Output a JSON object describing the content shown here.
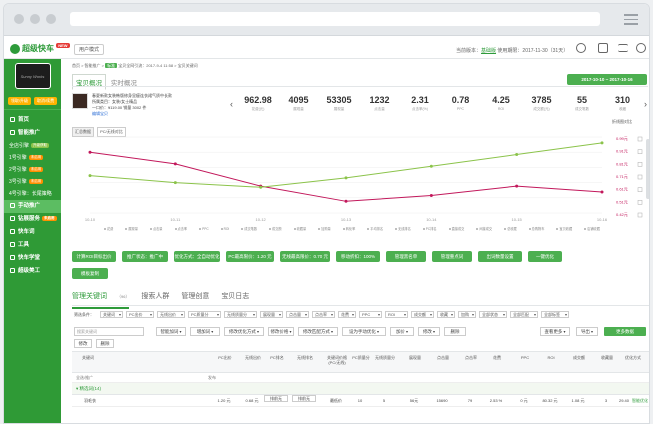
{
  "app": {
    "name": "超级快车",
    "badge": "NEW",
    "mode_btn": "用户模式"
  },
  "topbar": {
    "version_label": "当前版本：",
    "version": "基础版",
    "expiry": "使用期限：2017-11-30（31天）"
  },
  "sidebar": {
    "avatar_caption": "Sunny Works",
    "btn1": "领取/升级",
    "btn2": "取消/续费",
    "items": [
      {
        "label": "首页",
        "active": false,
        "main": true
      },
      {
        "label": "智能推广",
        "active": false,
        "main": true
      },
      {
        "label": "全店引擎",
        "tag": "升级获取",
        "sub": true
      },
      {
        "label": "1号引擎",
        "tag": "未启用",
        "sub": true
      },
      {
        "label": "2号引擎",
        "tag": "未启用",
        "sub": true
      },
      {
        "label": "3号引擎",
        "tag": "未启用",
        "sub": true
      },
      {
        "label": "4号引擎：长尾策略",
        "sub": true
      },
      {
        "label": "手动推广",
        "active": true,
        "main": true
      },
      {
        "label": "钻展服务",
        "tag": "未启用",
        "main": true
      },
      {
        "label": "快车词",
        "main": true
      },
      {
        "label": "工具",
        "main": true
      },
      {
        "label": "快车学堂",
        "main": true
      },
      {
        "label": "超级美工",
        "main": true
      }
    ]
  },
  "crumb": {
    "pre": "首页 > 智能推广 > ",
    "tag": "标准",
    "post": " 宝贝全网引流：2017-9-4 11:58 > 宝贝关键词"
  },
  "tabsA": [
    "宝贝概况",
    "实时概况"
  ],
  "date_range": "2017-10-10 ~ 2017-10-16",
  "product": {
    "title": "春夏新款女装韩版修身显瘦连衣裙气质中长款",
    "meta1": "所属类目：女装/女士精品",
    "meta2": "一口价：¥119.00 销量 3002 件",
    "link": "编辑宝贝"
  },
  "metrics": [
    {
      "value": "962.98",
      "label": "花费(元)"
    },
    {
      "value": "4095",
      "label": "展现量"
    },
    {
      "value": "53305",
      "label": "展现量"
    },
    {
      "value": "1232",
      "label": "点击量"
    },
    {
      "value": "2.31",
      "label": "点击率(%)"
    },
    {
      "value": "0.78",
      "label": "PPC"
    },
    {
      "value": "4.25",
      "label": "ROI"
    },
    {
      "value": "3785",
      "label": "成交额(元)"
    },
    {
      "value": "55",
      "label": "成交笔数"
    },
    {
      "value": "310",
      "label": "收藏"
    }
  ],
  "mini_tabs": [
    "汇总数据",
    "PC/无线对比"
  ],
  "compare_label": "折线图对比",
  "chart_data": {
    "type": "line",
    "x": [
      "10-10",
      "10-11",
      "10-12",
      "10-13",
      "10-14",
      "10-15",
      "10-16"
    ],
    "series": [
      {
        "name": "PPC",
        "color": "#c2185b",
        "values": [
          0.92,
          0.82,
          0.63,
          0.5,
          0.55,
          0.63,
          0.58
        ]
      },
      {
        "name": "ROI",
        "color": "#8bc34a",
        "values": [
          0.72,
          0.66,
          0.62,
          0.7,
          0.8,
          0.9,
          1.0
        ]
      }
    ],
    "right_ticks": [
      "0.99元",
      "0.91元",
      "0.81元",
      "0.71元",
      "0.61元",
      "0.51元",
      "0.42元"
    ],
    "legend": [
      "花费",
      "展现量",
      "点击量",
      "点击率",
      "PPC",
      "ROI",
      "成交笔数",
      "成交额",
      "收藏量",
      "加购量",
      "转化率",
      "平均排名",
      "无线排名",
      "PC排名",
      "直接成交",
      "间接成交",
      "总收藏",
      "总购物车",
      "宝贝收藏",
      "店铺收藏"
    ]
  },
  "ops": [
    "计算ROI目标出价",
    "推广状态：推广中",
    "优化方式：全自动优化",
    "PC最高限价：1.20 元",
    "无线最高限价：0.70 元",
    "移动折扣：100%",
    "管理黑名单",
    "管理重点词",
    "出词数量设置",
    "一键优化"
  ],
  "op_extra": "模板复制",
  "tabsB": [
    {
      "label": "管理关键词",
      "count": "（96）"
    },
    {
      "label": "搜索人群"
    },
    {
      "label": "管理创意"
    },
    {
      "label": "宝贝日志"
    }
  ],
  "filter_label": "筛选条件：",
  "filters": [
    "关键词",
    "PC出价",
    "无线出价",
    "PC质量分",
    "无线质量分",
    "展现量",
    "点击量",
    "点击率",
    "花费",
    "PPC",
    "ROI",
    "成交额",
    "收藏",
    "加购",
    "全部状态",
    "全部匹配",
    "全部标签"
  ],
  "search_placeholder": "搜索关键词",
  "tools": [
    "智能加词",
    "增加词",
    "修改优化方式",
    "修改价格",
    "修改匹配方式",
    "设为手动优化",
    "加价",
    "修改",
    "删除"
  ],
  "tool_sort": "查看更多",
  "tool_export": "导出",
  "tool_more": "更多数据",
  "columns": [
    "关键词",
    "PC出价",
    "无线出价",
    "PC排名",
    "无线排名",
    "关键词价格(PC/无线)",
    "PC质量分",
    "无线质量分",
    "展现量",
    "点击量",
    "点击率",
    "花费",
    "PPC",
    "ROI",
    "成交额",
    "收藏量",
    "优化方式"
  ],
  "subrow": {
    "label": "全选/推广",
    "col": "发布"
  },
  "group_label": "精选词(14)",
  "row": {
    "keyword": "羽毛衣",
    "pc_bid": "1.20 元",
    "wl_bid": "0.68 元",
    "pc_rank": "排前无",
    "wl_rank": "排前无",
    "price": "最低价",
    "pc_q": "10",
    "wl_q": "5",
    "impr": "56元",
    "clicks": "15690",
    "ctr": "79",
    "cost": "2.53 %",
    "spend": "0 元",
    "ppc": "80.32 元",
    "roi": "1.08 元",
    "gmv": "3",
    "fav": "29.40",
    "opt": "智能优化"
  }
}
